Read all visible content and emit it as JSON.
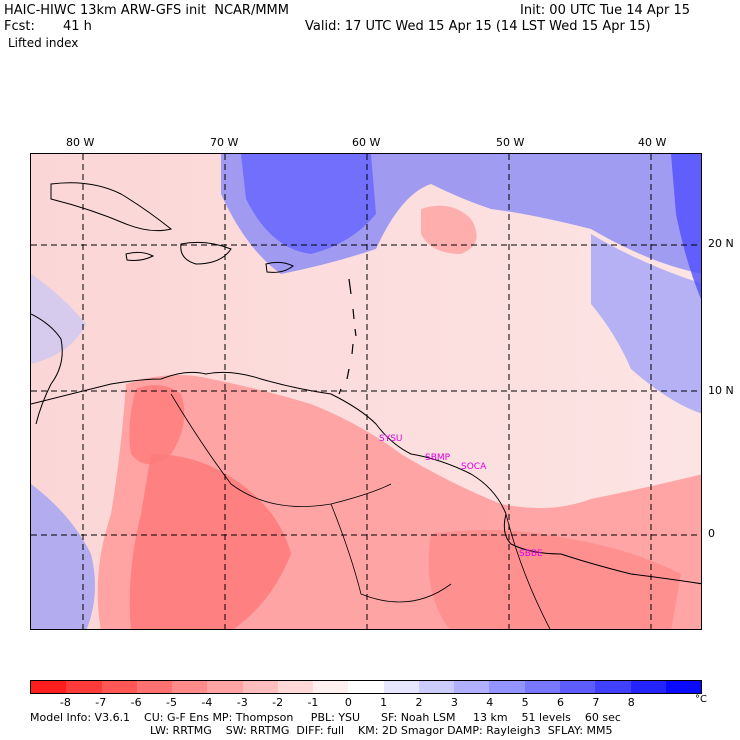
{
  "header": {
    "title": "HAIC-HIWC 13km ARW-GFS init  NCAR/MMM",
    "init": "Init: 00 UTC Tue 14 Apr 15",
    "fcst_label": "Fcst:",
    "fcst_value": "41 h",
    "valid": "Valid: 17 UTC Wed 15 Apr 15 (14 LST Wed 15 Apr 15)",
    "field": "Lifted index"
  },
  "map": {
    "lon_labels": [
      "80 W",
      "70 W",
      "60 W",
      "50 W",
      "40 W"
    ],
    "lat_labels": [
      "20 N",
      "10 N",
      "0"
    ],
    "stations": [
      "SYSU",
      "SBMP",
      "SOCA",
      "SBBE"
    ]
  },
  "colorbar": {
    "colors": [
      "#ff1e1e",
      "#ff3a3a",
      "#ff5656",
      "#ff7070",
      "#ff8a8a",
      "#ffa4a4",
      "#ffbebe",
      "#ffd8d8",
      "#fff0f0",
      "#ffffff",
      "#e6e6ff",
      "#ccccff",
      "#b0b0ff",
      "#9494ff",
      "#7878ff",
      "#5c5cff",
      "#4040ff",
      "#2424ff",
      "#0a0aff"
    ],
    "labels": [
      "-8",
      "-7",
      "-6",
      "-5",
      "-4",
      "-3",
      "-2",
      "-1",
      "0",
      "1",
      "2",
      "3",
      "4",
      "5",
      "6",
      "7",
      "8"
    ],
    "unit": "°C"
  },
  "model_info": {
    "line1": "Model Info: V3.6.1    CU: G-F Ens MP: Thompson     PBL: YSU      SF: Noah LSM     13 km    51 levels    60 sec",
    "line2": "LW: RRTMG    SW: RRTMG  DIFF: full    KM: 2D Smagor DAMP: Rayleigh3  SFLAY: MM5"
  }
}
